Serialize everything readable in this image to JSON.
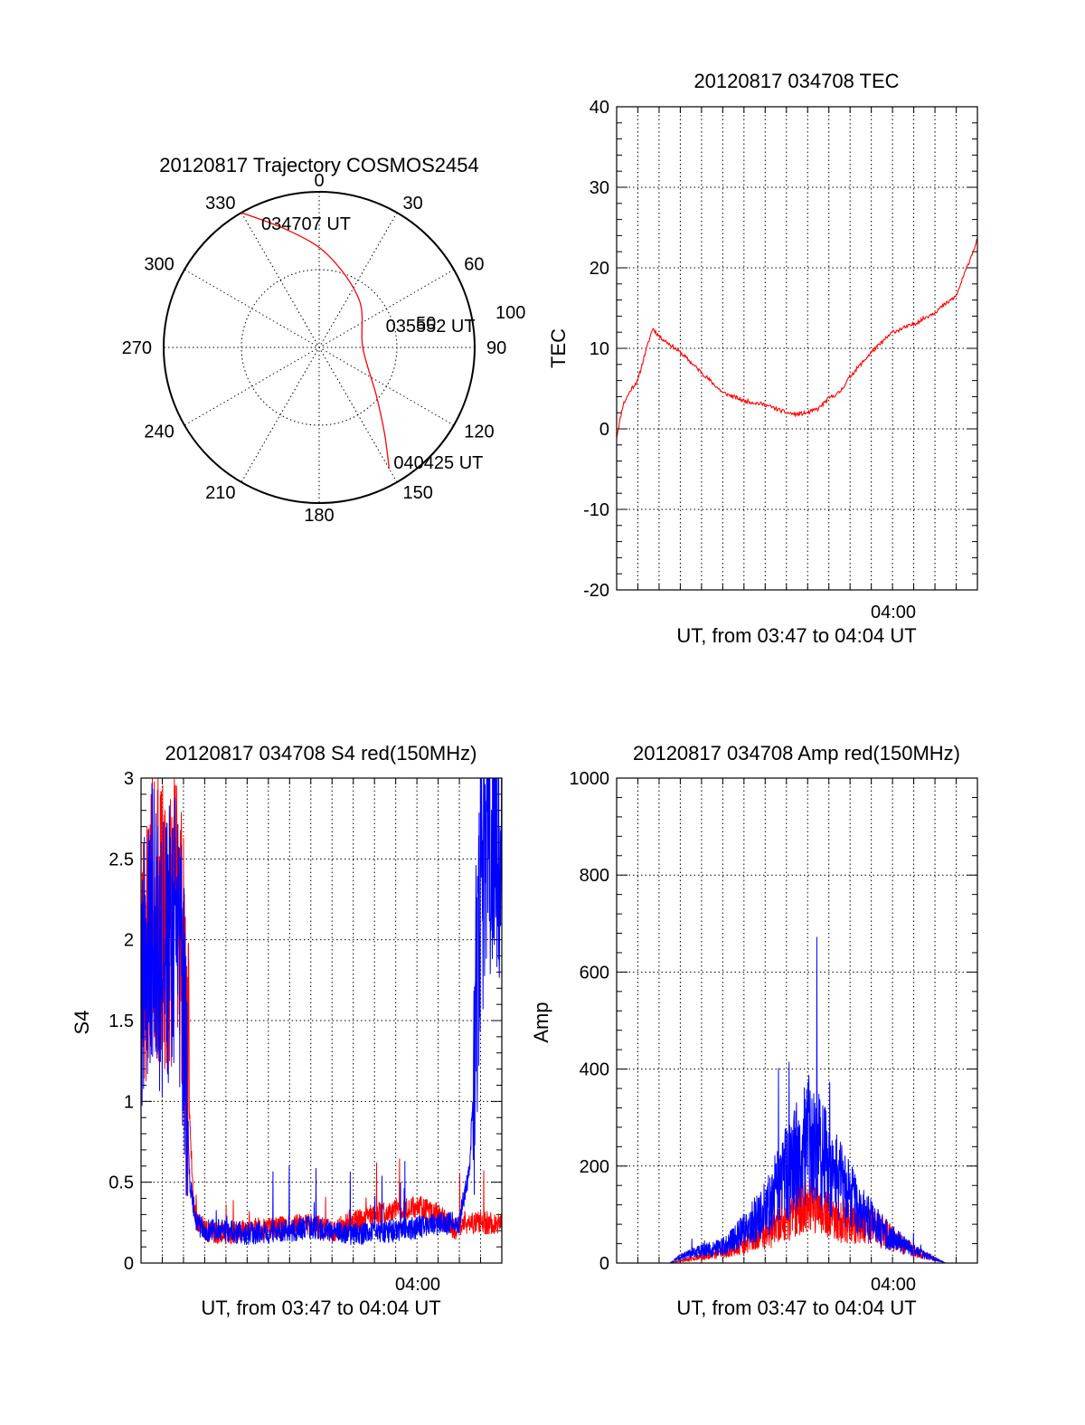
{
  "chart_data": [
    {
      "type": "polar",
      "title": "20120817 Trajectory COSMOS2454",
      "angle_labels": [
        "0",
        "30",
        "60",
        "90",
        "120",
        "150",
        "180",
        "210",
        "240",
        "270",
        "300",
        "330"
      ],
      "radius_labels": [
        "50",
        "100"
      ],
      "rlim": [
        0,
        100
      ],
      "grid": true,
      "series": [
        {
          "color": "#ff0000",
          "points": [
            {
              "az": 330,
              "r": 100
            },
            {
              "az": 345,
              "r": 78
            },
            {
              "az": 5,
              "r": 60
            },
            {
              "az": 40,
              "r": 40
            },
            {
              "az": 90,
              "r": 28
            },
            {
              "az": 130,
              "r": 48
            },
            {
              "az": 143,
              "r": 70
            },
            {
              "az": 150,
              "r": 90
            }
          ]
        }
      ],
      "annotations": [
        {
          "text": "034707 UT",
          "az": 335,
          "r": 88
        },
        {
          "text": "035552 UT",
          "az": 72,
          "r": 45
        },
        {
          "text": "040425 UT",
          "az": 147,
          "r": 88
        }
      ]
    },
    {
      "type": "line",
      "title": "20120817 034708 TEC",
      "xlabel": "UT, from 03:47 to 04:04 UT",
      "ylabel": "TEC",
      "x_tick_labels": [
        "04:00"
      ],
      "yticks": [
        -20,
        -10,
        0,
        10,
        20,
        30,
        40
      ],
      "xlim": [
        0,
        17
      ],
      "ylim": [
        -20,
        40
      ],
      "grid": true,
      "series": [
        {
          "color": "#ff0000",
          "x": [
            0,
            0.3,
            0.7,
            1.0,
            1.3,
            1.7,
            2.0,
            2.5,
            3.0,
            4.0,
            5.0,
            5.5,
            6.0,
            7.0,
            8.0,
            8.5,
            9.0,
            9.5,
            10.0,
            10.5,
            11.0,
            12.0,
            13.0,
            13.5,
            14.0,
            15.0,
            16.0,
            16.5,
            17.0
          ],
          "y": [
            -1,
            3,
            5,
            6,
            9,
            12.5,
            11.5,
            10.5,
            9.5,
            7,
            4.5,
            4,
            3.5,
            3,
            2,
            1.8,
            2,
            2.5,
            3.8,
            4.5,
            6.5,
            9.5,
            12,
            12.5,
            13,
            14.5,
            16.5,
            20,
            23.5
          ]
        }
      ]
    },
    {
      "type": "line",
      "title": "20120817 034708 S4 red(150MHz)",
      "xlabel": "UT, from 03:47 to 04:04 UT",
      "ylabel": "S4",
      "x_tick_labels": [
        "04:00"
      ],
      "yticks": [
        0,
        0.5,
        1,
        1.5,
        2,
        2.5,
        3
      ],
      "y_tick_labels": [
        "0",
        "0.5",
        "1",
        "1.5",
        "2",
        "2.5",
        "3"
      ],
      "xlim": [
        0,
        17
      ],
      "ylim": [
        0,
        3
      ],
      "grid": true,
      "series": [
        {
          "color": "#ff0000",
          "x": [
            0,
            0.6,
            1.2,
            1.8,
            2.2,
            2.5,
            3.0,
            4.0,
            5.0,
            6.0,
            7.0,
            8.0,
            9.0,
            10.0,
            11.0,
            12.0,
            13.0,
            14.0,
            14.8,
            15.2
          ],
          "y": [
            1.8,
            2.2,
            2.0,
            2.3,
            1.2,
            0.3,
            0.2,
            0.18,
            0.2,
            0.22,
            0.23,
            0.24,
            0.2,
            0.25,
            0.3,
            0.33,
            0.35,
            0.3,
            0.2,
            0.25
          ]
        },
        {
          "color": "#0000ff",
          "x": [
            0,
            0.5,
            1.0,
            1.5,
            2.0,
            2.3,
            2.6,
            3.0,
            4.0,
            5.0,
            6.0,
            7.0,
            8.0,
            9.0,
            10.0,
            11.0,
            12.0,
            13.0,
            14.0,
            15.0,
            15.5,
            16.0,
            16.5,
            17.0
          ],
          "y": [
            1.8,
            2.1,
            1.9,
            2.1,
            1.7,
            0.5,
            0.25,
            0.2,
            0.2,
            0.18,
            0.19,
            0.2,
            0.22,
            0.2,
            0.18,
            0.19,
            0.2,
            0.22,
            0.24,
            0.25,
            0.6,
            2.3,
            2.7,
            2.6
          ]
        }
      ]
    },
    {
      "type": "line",
      "title": "20120817 034708 Amp red(150MHz)",
      "xlabel": "UT, from 03:47 to 04:04 UT",
      "ylabel": "Amp",
      "x_tick_labels": [
        "04:00"
      ],
      "yticks": [
        0,
        200,
        400,
        600,
        800,
        1000
      ],
      "xlim": [
        0,
        17
      ],
      "ylim": [
        0,
        1000
      ],
      "grid": true,
      "series": [
        {
          "color": "#ff0000",
          "x": [
            0,
            2.5,
            3.0,
            4.0,
            5.0,
            6.0,
            7.0,
            8.0,
            9.0,
            9.5,
            10.0,
            11.0,
            12.0,
            13.0,
            14.0,
            15.0,
            15.5,
            17.0
          ],
          "y": [
            0,
            0,
            5,
            15,
            25,
            45,
            70,
            100,
            160,
            130,
            110,
            100,
            90,
            60,
            30,
            10,
            0,
            0
          ]
        },
        {
          "color": "#0000ff",
          "x": [
            0,
            2.5,
            3.0,
            4.0,
            5.0,
            6.0,
            7.0,
            8.0,
            8.5,
            9.0,
            9.5,
            10.0,
            11.0,
            12.0,
            13.0,
            14.0,
            15.0,
            15.5,
            17.0
          ],
          "y": [
            0,
            0,
            15,
            30,
            40,
            80,
            130,
            220,
            260,
            300,
            280,
            230,
            160,
            100,
            60,
            30,
            10,
            0,
            0
          ]
        }
      ]
    }
  ]
}
